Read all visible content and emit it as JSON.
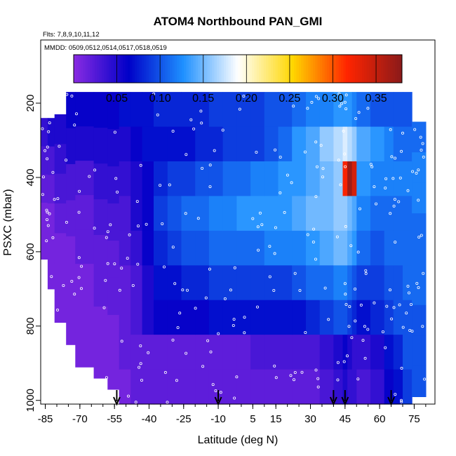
{
  "chart_data": {
    "type": "heatmap",
    "title": "ATOM4 Northbound PAN_GMI",
    "subtitle_flights": "Flts: 7,8,9,10,11,12",
    "subtitle_dates": "MMDD: 0509,0512,0514,0517,0518,0519",
    "xlabel": "Latitude (deg N)",
    "ylabel": "PSXC (mbar)",
    "xlim": [
      -87,
      84
    ],
    "ylim": [
      1010,
      30
    ],
    "x_ticks": [
      -85,
      -70,
      -55,
      -40,
      -25,
      -10,
      5,
      15,
      30,
      45,
      60,
      75
    ],
    "y_ticks": [
      200,
      400,
      600,
      800,
      1000
    ],
    "colorbar": {
      "range": [
        0.0,
        0.38
      ],
      "ticks": [
        0.05,
        0.1,
        0.15,
        0.2,
        0.25,
        0.3,
        0.35
      ],
      "tick_labels": [
        "0.05",
        "0.10",
        "0.15",
        "0.20",
        "0.25",
        "0.30",
        "0.35"
      ],
      "colors": [
        "#8a2be2",
        "#0000c8",
        "#1e90ff",
        "#ffffff",
        "#ffd700",
        "#ff2400",
        "#8b1a1a"
      ]
    },
    "arrow_latitudes": [
      -54,
      -10,
      40,
      45,
      65
    ],
    "columns": [
      {
        "x0": -87,
        "x1": -84,
        "ptop": 240,
        "pbot": 620,
        "vals": [
          0.04,
          0.03,
          0.02,
          0.01,
          0.01
        ]
      },
      {
        "x0": -84,
        "x1": -81,
        "ptop": 240,
        "pbot": 700,
        "vals": [
          0.05,
          0.03,
          0.02,
          0.01,
          0.01,
          0.01
        ]
      },
      {
        "x0": -81,
        "x1": -76,
        "ptop": 230,
        "pbot": 790,
        "vals": [
          0.05,
          0.04,
          0.03,
          0.02,
          0.01,
          0.01,
          0.01
        ]
      },
      {
        "x0": -76,
        "x1": -72,
        "ptop": 170,
        "pbot": 850,
        "vals": [
          0.06,
          0.05,
          0.03,
          0.02,
          0.01,
          0.01,
          0.01
        ]
      },
      {
        "x0": -72,
        "x1": -64,
        "ptop": 170,
        "pbot": 910,
        "vals": [
          0.06,
          0.05,
          0.03,
          0.02,
          0.02,
          0.01,
          0.01,
          0.01
        ]
      },
      {
        "x0": -64,
        "x1": -58,
        "ptop": 170,
        "pbot": 940,
        "vals": [
          0.06,
          0.05,
          0.04,
          0.03,
          0.02,
          0.02,
          0.01,
          0.01
        ]
      },
      {
        "x0": -58,
        "x1": -53,
        "ptop": 170,
        "pbot": 970,
        "vals": [
          0.06,
          0.05,
          0.04,
          0.03,
          0.02,
          0.02,
          0.01,
          0.01
        ]
      },
      {
        "x0": -53,
        "x1": -48,
        "ptop": 170,
        "pbot": 1010,
        "vals": [
          0.07,
          0.05,
          0.04,
          0.03,
          0.03,
          0.02,
          0.02,
          0.02,
          0.01
        ]
      },
      {
        "x0": -48,
        "x1": -43,
        "ptop": 170,
        "pbot": 1010,
        "vals": [
          0.07,
          0.06,
          0.05,
          0.05,
          0.04,
          0.03,
          0.03,
          0.02,
          0.02
        ]
      },
      {
        "x0": -43,
        "x1": -38,
        "ptop": 170,
        "pbot": 1010,
        "vals": [
          0.07,
          0.07,
          0.06,
          0.06,
          0.06,
          0.05,
          0.05,
          0.02,
          0.02
        ]
      },
      {
        "x0": -38,
        "x1": -32,
        "ptop": 170,
        "pbot": 1010,
        "vals": [
          0.08,
          0.07,
          0.08,
          0.09,
          0.08,
          0.07,
          0.06,
          0.02,
          0.02
        ]
      },
      {
        "x0": -32,
        "x1": -26,
        "ptop": 170,
        "pbot": 1010,
        "vals": [
          0.08,
          0.07,
          0.09,
          0.1,
          0.09,
          0.07,
          0.06,
          0.02,
          0.02
        ]
      },
      {
        "x0": -26,
        "x1": -20,
        "ptop": 170,
        "pbot": 1010,
        "vals": [
          0.08,
          0.07,
          0.09,
          0.11,
          0.1,
          0.08,
          0.06,
          0.02,
          0.02
        ]
      },
      {
        "x0": -20,
        "x1": -14,
        "ptop": 170,
        "pbot": 1010,
        "vals": [
          0.08,
          0.08,
          0.1,
          0.11,
          0.1,
          0.08,
          0.06,
          0.02,
          0.02
        ]
      },
      {
        "x0": -14,
        "x1": -8,
        "ptop": 170,
        "pbot": 1010,
        "vals": [
          0.09,
          0.08,
          0.1,
          0.12,
          0.11,
          0.09,
          0.07,
          0.02,
          0.02
        ]
      },
      {
        "x0": -8,
        "x1": -2,
        "ptop": 170,
        "pbot": 1010,
        "vals": [
          0.09,
          0.09,
          0.11,
          0.12,
          0.11,
          0.09,
          0.07,
          0.02,
          0.02
        ]
      },
      {
        "x0": -2,
        "x1": 4,
        "ptop": 170,
        "pbot": 1010,
        "vals": [
          0.09,
          0.09,
          0.11,
          0.13,
          0.11,
          0.09,
          0.07,
          0.02,
          0.02
        ]
      },
      {
        "x0": 4,
        "x1": 10,
        "ptop": 170,
        "pbot": 1010,
        "vals": [
          0.09,
          0.09,
          0.12,
          0.13,
          0.11,
          0.09,
          0.07,
          0.03,
          0.02
        ]
      },
      {
        "x0": 10,
        "x1": 16,
        "ptop": 170,
        "pbot": 1010,
        "vals": [
          0.1,
          0.1,
          0.12,
          0.13,
          0.12,
          0.09,
          0.07,
          0.03,
          0.02
        ]
      },
      {
        "x0": 16,
        "x1": 22,
        "ptop": 170,
        "pbot": 1010,
        "vals": [
          0.1,
          0.11,
          0.13,
          0.13,
          0.12,
          0.09,
          0.07,
          0.03,
          0.02
        ]
      },
      {
        "x0": 22,
        "x1": 28,
        "ptop": 170,
        "pbot": 1010,
        "vals": [
          0.11,
          0.13,
          0.13,
          0.14,
          0.12,
          0.1,
          0.07,
          0.03,
          0.02
        ]
      },
      {
        "x0": 28,
        "x1": 34,
        "ptop": 170,
        "pbot": 1010,
        "vals": [
          0.12,
          0.14,
          0.14,
          0.15,
          0.13,
          0.11,
          0.08,
          0.03,
          0.02
        ]
      },
      {
        "x0": 34,
        "x1": 40,
        "ptop": 170,
        "pbot": 1010,
        "vals": [
          0.12,
          0.16,
          0.15,
          0.15,
          0.14,
          0.11,
          0.09,
          0.04,
          0.03
        ]
      },
      {
        "x0": 40,
        "x1": 44,
        "ptop": 170,
        "pbot": 1010,
        "vals": [
          0.13,
          0.17,
          0.16,
          0.16,
          0.15,
          0.12,
          0.1,
          0.05,
          0.04
        ]
      },
      {
        "x0": 44,
        "x1": 46,
        "ptop": 170,
        "pbot": 1010,
        "vals": [
          0.13,
          0.18,
          0.32,
          0.16,
          0.15,
          0.12,
          0.1,
          0.06,
          0.05
        ]
      },
      {
        "x0": 46,
        "x1": 48,
        "ptop": 170,
        "pbot": 1010,
        "vals": [
          0.13,
          0.17,
          0.37,
          0.15,
          0.14,
          0.11,
          0.09,
          0.05,
          0.04
        ]
      },
      {
        "x0": 48,
        "x1": 50,
        "ptop": 170,
        "pbot": 1010,
        "vals": [
          0.12,
          0.16,
          0.34,
          0.14,
          0.13,
          0.1,
          0.08,
          0.04,
          0.04
        ]
      },
      {
        "x0": 50,
        "x1": 56,
        "ptop": 170,
        "pbot": 1010,
        "vals": [
          0.11,
          0.14,
          0.13,
          0.12,
          0.11,
          0.09,
          0.07,
          0.04,
          0.03
        ]
      },
      {
        "x0": 56,
        "x1": 62,
        "ptop": 170,
        "pbot": 1010,
        "vals": [
          0.1,
          0.13,
          0.12,
          0.11,
          0.1,
          0.09,
          0.08,
          0.05,
          0.04
        ]
      },
      {
        "x0": 62,
        "x1": 66,
        "ptop": 170,
        "pbot": 1010,
        "vals": [
          0.1,
          0.12,
          0.12,
          0.11,
          0.11,
          0.1,
          0.09,
          0.07,
          0.06
        ]
      },
      {
        "x0": 66,
        "x1": 70,
        "ptop": 170,
        "pbot": 1010,
        "vals": [
          0.1,
          0.11,
          0.12,
          0.11,
          0.11,
          0.1,
          0.1,
          0.08,
          0.07
        ]
      },
      {
        "x0": 70,
        "x1": 74,
        "ptop": 170,
        "pbot": 1010,
        "vals": [
          0.1,
          0.11,
          0.12,
          0.11,
          0.11,
          0.11,
          0.1,
          0.1,
          0.09
        ]
      },
      {
        "x0": 74,
        "x1": 78,
        "ptop": 250,
        "pbot": 990,
        "vals": [
          0.11,
          0.12,
          0.12,
          0.11,
          0.11,
          0.11,
          0.1,
          0.1,
          0.1
        ]
      },
      {
        "x0": 78,
        "x1": 80,
        "ptop": 250,
        "pbot": 990,
        "vals": [
          0.11,
          0.12,
          0.12,
          0.11,
          0.11,
          0.11,
          0.1,
          0.1,
          0.1
        ]
      }
    ]
  }
}
